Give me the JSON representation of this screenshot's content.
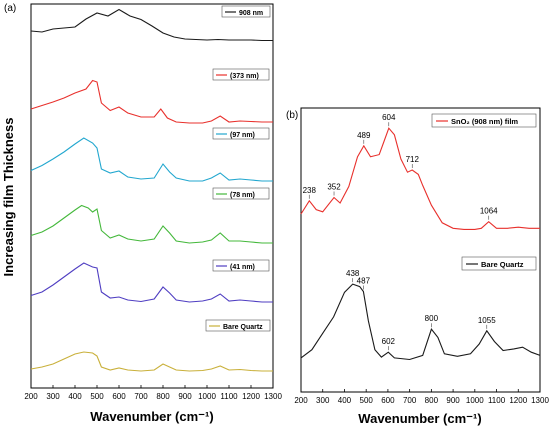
{
  "panel_a": {
    "label": "(a)",
    "xlabel": "Wavenumber (cm⁻¹)",
    "ylabel": "Increasing film Thickness",
    "xticks": [
      "200",
      "300",
      "400",
      "500",
      "600",
      "700",
      "800",
      "900",
      "1000",
      "1100",
      "1200",
      "1300"
    ]
  },
  "panel_b": {
    "label": "(b)",
    "xlabel": "Wavenumber (cm⁻¹)",
    "xticks": [
      "200",
      "300",
      "400",
      "500",
      "600",
      "700",
      "800",
      "900",
      "1000",
      "1100",
      "1200",
      "1300"
    ]
  },
  "chart_data": [
    {
      "type": "line",
      "panel": "a",
      "xlim": [
        200,
        1300
      ],
      "ylabel": "Increasing film Thickness",
      "xlabel": "Wavenumber (cm⁻¹)",
      "legend_placement": "right, one label per trace",
      "series": [
        {
          "name": "908 nm",
          "color": "#1a1a1a",
          "points": [
            [
              200,
              0.62
            ],
            [
              250,
              0.6
            ],
            [
              300,
              0.66
            ],
            [
              350,
              0.68
            ],
            [
              400,
              0.7
            ],
            [
              450,
              0.86
            ],
            [
              500,
              0.98
            ],
            [
              550,
              0.92
            ],
            [
              600,
              1.05
            ],
            [
              650,
              0.92
            ],
            [
              700,
              0.85
            ],
            [
              750,
              0.72
            ],
            [
              800,
              0.58
            ],
            [
              850,
              0.5
            ],
            [
              900,
              0.46
            ],
            [
              950,
              0.45
            ],
            [
              1000,
              0.44
            ],
            [
              1050,
              0.45
            ],
            [
              1100,
              0.44
            ],
            [
              1150,
              0.44
            ],
            [
              1200,
              0.44
            ],
            [
              1250,
              0.43
            ],
            [
              1300,
              0.43
            ]
          ]
        },
        {
          "name": "(373 nm)",
          "color": "#e8302c",
          "points": [
            [
              200,
              0.38
            ],
            [
              250,
              0.45
            ],
            [
              300,
              0.52
            ],
            [
              350,
              0.6
            ],
            [
              400,
              0.7
            ],
            [
              450,
              0.78
            ],
            [
              480,
              0.95
            ],
            [
              500,
              0.92
            ],
            [
              520,
              0.5
            ],
            [
              560,
              0.35
            ],
            [
              600,
              0.42
            ],
            [
              640,
              0.3
            ],
            [
              700,
              0.22
            ],
            [
              760,
              0.22
            ],
            [
              790,
              0.38
            ],
            [
              820,
              0.2
            ],
            [
              860,
              0.12
            ],
            [
              920,
              0.1
            ],
            [
              980,
              0.1
            ],
            [
              1020,
              0.14
            ],
            [
              1060,
              0.24
            ],
            [
              1100,
              0.12
            ],
            [
              1150,
              0.14
            ],
            [
              1200,
              0.13
            ],
            [
              1250,
              0.12
            ],
            [
              1300,
              0.12
            ]
          ]
        },
        {
          "name": "(97 nm)",
          "color": "#22a7cf",
          "points": [
            [
              200,
              0.35
            ],
            [
              250,
              0.45
            ],
            [
              300,
              0.58
            ],
            [
              350,
              0.72
            ],
            [
              400,
              0.88
            ],
            [
              440,
              1.0
            ],
            [
              480,
              0.9
            ],
            [
              500,
              0.8
            ],
            [
              520,
              0.38
            ],
            [
              560,
              0.3
            ],
            [
              600,
              0.34
            ],
            [
              640,
              0.22
            ],
            [
              700,
              0.18
            ],
            [
              760,
              0.2
            ],
            [
              800,
              0.48
            ],
            [
              830,
              0.32
            ],
            [
              860,
              0.2
            ],
            [
              920,
              0.14
            ],
            [
              980,
              0.14
            ],
            [
              1020,
              0.2
            ],
            [
              1060,
              0.3
            ],
            [
              1100,
              0.16
            ],
            [
              1150,
              0.18
            ],
            [
              1200,
              0.16
            ],
            [
              1250,
              0.14
            ],
            [
              1300,
              0.14
            ]
          ]
        },
        {
          "name": "(78 nm)",
          "color": "#44b83b",
          "points": [
            [
              200,
              0.25
            ],
            [
              250,
              0.32
            ],
            [
              300,
              0.44
            ],
            [
              350,
              0.6
            ],
            [
              400,
              0.76
            ],
            [
              430,
              0.85
            ],
            [
              460,
              0.8
            ],
            [
              480,
              0.72
            ],
            [
              500,
              0.78
            ],
            [
              520,
              0.35
            ],
            [
              560,
              0.2
            ],
            [
              600,
              0.26
            ],
            [
              640,
              0.18
            ],
            [
              700,
              0.14
            ],
            [
              760,
              0.18
            ],
            [
              800,
              0.44
            ],
            [
              830,
              0.3
            ],
            [
              860,
              0.14
            ],
            [
              920,
              0.1
            ],
            [
              980,
              0.12
            ],
            [
              1020,
              0.16
            ],
            [
              1060,
              0.3
            ],
            [
              1100,
              0.14
            ],
            [
              1150,
              0.14
            ],
            [
              1200,
              0.12
            ],
            [
              1250,
              0.1
            ],
            [
              1300,
              0.1
            ]
          ]
        },
        {
          "name": "(41 nm)",
          "color": "#4f3ec2",
          "points": [
            [
              200,
              0.25
            ],
            [
              250,
              0.32
            ],
            [
              300,
              0.46
            ],
            [
              350,
              0.62
            ],
            [
              400,
              0.78
            ],
            [
              440,
              0.9
            ],
            [
              480,
              0.82
            ],
            [
              500,
              0.8
            ],
            [
              520,
              0.32
            ],
            [
              560,
              0.2
            ],
            [
              600,
              0.22
            ],
            [
              640,
              0.16
            ],
            [
              700,
              0.13
            ],
            [
              760,
              0.18
            ],
            [
              800,
              0.42
            ],
            [
              830,
              0.3
            ],
            [
              860,
              0.16
            ],
            [
              920,
              0.12
            ],
            [
              980,
              0.14
            ],
            [
              1020,
              0.18
            ],
            [
              1060,
              0.28
            ],
            [
              1100,
              0.14
            ],
            [
              1150,
              0.16
            ],
            [
              1200,
              0.14
            ],
            [
              1250,
              0.12
            ],
            [
              1300,
              0.12
            ]
          ]
        },
        {
          "name": "Bare Quartz",
          "color": "#c9b03a",
          "points": [
            [
              200,
              0.1
            ],
            [
              250,
              0.14
            ],
            [
              300,
              0.2
            ],
            [
              350,
              0.3
            ],
            [
              400,
              0.4
            ],
            [
              440,
              0.44
            ],
            [
              480,
              0.42
            ],
            [
              500,
              0.36
            ],
            [
              520,
              0.14
            ],
            [
              560,
              0.08
            ],
            [
              600,
              0.12
            ],
            [
              640,
              0.08
            ],
            [
              700,
              0.06
            ],
            [
              760,
              0.08
            ],
            [
              800,
              0.2
            ],
            [
              830,
              0.14
            ],
            [
              860,
              0.08
            ],
            [
              920,
              0.06
            ],
            [
              980,
              0.07
            ],
            [
              1020,
              0.1
            ],
            [
              1060,
              0.16
            ],
            [
              1100,
              0.08
            ],
            [
              1150,
              0.09
            ],
            [
              1200,
              0.07
            ],
            [
              1250,
              0.06
            ],
            [
              1300,
              0.06
            ]
          ]
        }
      ]
    },
    {
      "type": "line",
      "panel": "b",
      "xlim": [
        200,
        1300
      ],
      "xlabel": "Wavenumber (cm⁻¹)",
      "legend_placement": "top-right / right",
      "series": [
        {
          "name": "SnO₂ (908 nm) film",
          "color": "#e8302c",
          "points": [
            [
              200,
              0.2
            ],
            [
              238,
              0.32
            ],
            [
              270,
              0.24
            ],
            [
              300,
              0.22
            ],
            [
              352,
              0.35
            ],
            [
              380,
              0.3
            ],
            [
              420,
              0.45
            ],
            [
              460,
              0.72
            ],
            [
              489,
              0.82
            ],
            [
              520,
              0.72
            ],
            [
              560,
              0.74
            ],
            [
              580,
              0.85
            ],
            [
              604,
              0.98
            ],
            [
              630,
              0.92
            ],
            [
              660,
              0.7
            ],
            [
              690,
              0.58
            ],
            [
              712,
              0.6
            ],
            [
              740,
              0.56
            ],
            [
              760,
              0.46
            ],
            [
              800,
              0.28
            ],
            [
              850,
              0.12
            ],
            [
              900,
              0.07
            ],
            [
              950,
              0.06
            ],
            [
              1000,
              0.06
            ],
            [
              1030,
              0.07
            ],
            [
              1064,
              0.13
            ],
            [
              1100,
              0.07
            ],
            [
              1150,
              0.07
            ],
            [
              1200,
              0.08
            ],
            [
              1250,
              0.07
            ],
            [
              1300,
              0.07
            ]
          ]
        },
        {
          "name": "Bare Quartz",
          "color": "#1a1a1a",
          "points": [
            [
              200,
              0.05
            ],
            [
              250,
              0.15
            ],
            [
              300,
              0.35
            ],
            [
              350,
              0.55
            ],
            [
              400,
              0.85
            ],
            [
              438,
              0.95
            ],
            [
              470,
              0.92
            ],
            [
              487,
              0.86
            ],
            [
              510,
              0.5
            ],
            [
              540,
              0.15
            ],
            [
              570,
              0.06
            ],
            [
              602,
              0.12
            ],
            [
              630,
              0.05
            ],
            [
              700,
              0.03
            ],
            [
              760,
              0.08
            ],
            [
              800,
              0.4
            ],
            [
              830,
              0.3
            ],
            [
              860,
              0.1
            ],
            [
              920,
              0.07
            ],
            [
              980,
              0.1
            ],
            [
              1020,
              0.22
            ],
            [
              1055,
              0.38
            ],
            [
              1090,
              0.25
            ],
            [
              1130,
              0.14
            ],
            [
              1180,
              0.16
            ],
            [
              1220,
              0.18
            ],
            [
              1260,
              0.12
            ],
            [
              1300,
              0.08
            ]
          ]
        }
      ],
      "annotations": [
        "238",
        "352",
        "489",
        "604",
        "712",
        "1064",
        "438",
        "487",
        "602",
        "800",
        "1055"
      ]
    }
  ]
}
